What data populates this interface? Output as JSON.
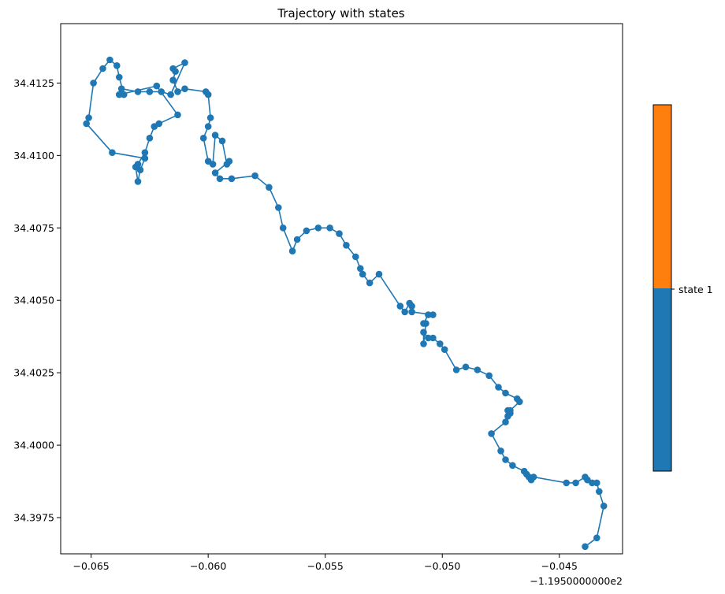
{
  "chart_data": {
    "type": "line",
    "title": "Trajectory with states",
    "xlabel": "",
    "ylabel": "",
    "x_offset_label": "−1.1950000000e2",
    "xlim": [
      -0.0663,
      -0.0423
    ],
    "ylim": [
      34.39625,
      34.41455
    ],
    "xticks": [
      -0.065,
      -0.06,
      -0.055,
      -0.05,
      -0.045
    ],
    "xtick_labels": [
      "−0.065",
      "−0.060",
      "−0.055",
      "−0.050",
      "−0.045"
    ],
    "yticks": [
      34.3975,
      34.4,
      34.4025,
      34.405,
      34.4075,
      34.41,
      34.4125
    ],
    "ytick_labels": [
      "34.3975",
      "34.4000",
      "34.4025",
      "34.4050",
      "34.4075",
      "34.4100",
      "34.4125"
    ],
    "marker": "circle",
    "line_color": "#1f77b4",
    "grid": false,
    "series": [
      {
        "x": [
          -0.0439,
          -0.0434,
          -0.0431,
          -0.0433,
          -0.0434,
          -0.0436,
          -0.0438,
          -0.0439,
          -0.0443,
          -0.0447,
          -0.0461,
          -0.0462,
          -0.0463,
          -0.0464,
          -0.0465,
          -0.047,
          -0.0473,
          -0.0475,
          -0.0479,
          -0.0473,
          -0.0472,
          -0.0471,
          -0.0472,
          -0.0471,
          -0.0467,
          -0.0468,
          -0.0473,
          -0.0476,
          -0.048,
          -0.0485,
          -0.049,
          -0.0494,
          -0.0499,
          -0.0501,
          -0.0504,
          -0.0506,
          -0.0508,
          -0.0508,
          -0.0507,
          -0.0508,
          -0.0506,
          -0.0504,
          -0.0513,
          -0.0513,
          -0.0514,
          -0.0516,
          -0.0518,
          -0.0527,
          -0.0531,
          -0.0534,
          -0.0535,
          -0.0537,
          -0.0541,
          -0.0544,
          -0.0548,
          -0.0553,
          -0.0558,
          -0.0562,
          -0.0564,
          -0.0568,
          -0.057,
          -0.0574,
          -0.058,
          -0.059,
          -0.0595,
          -0.0597,
          -0.0591,
          -0.0592,
          -0.0594,
          -0.0597,
          -0.0598,
          -0.06,
          -0.0602,
          -0.06,
          -0.0599,
          -0.06,
          -0.0601,
          -0.061,
          -0.0613,
          -0.0615,
          -0.0614,
          -0.0615,
          -0.061,
          -0.0616,
          -0.062,
          -0.0625,
          -0.063,
          -0.0637,
          -0.0636,
          -0.0638,
          -0.0639,
          -0.0642,
          -0.0645,
          -0.0649,
          -0.0651,
          -0.0652,
          -0.0641,
          -0.0627,
          -0.0629,
          -0.063,
          -0.0631,
          -0.063,
          -0.0627,
          -0.0625,
          -0.0623,
          -0.0621,
          -0.0613,
          -0.0622,
          -0.0638
        ],
        "y": [
          34.3965,
          34.3968,
          34.3979,
          34.3984,
          34.3987,
          34.3987,
          34.3988,
          34.3989,
          34.3987,
          34.3987,
          34.3989,
          34.3988,
          34.3989,
          34.399,
          34.3991,
          34.3993,
          34.3995,
          34.3998,
          34.4004,
          34.4008,
          34.401,
          34.4011,
          34.4012,
          34.4012,
          34.4015,
          34.4016,
          34.4018,
          34.402,
          34.4024,
          34.4026,
          34.4027,
          34.4026,
          34.4033,
          34.4035,
          34.4037,
          34.4037,
          34.4039,
          34.4035,
          34.4042,
          34.4042,
          34.4045,
          34.4045,
          34.4046,
          34.4048,
          34.4049,
          34.4046,
          34.4048,
          34.4059,
          34.4056,
          34.4059,
          34.4061,
          34.4065,
          34.4069,
          34.4073,
          34.4075,
          34.4075,
          34.4074,
          34.4071,
          34.4067,
          34.4075,
          34.4082,
          34.4089,
          34.4093,
          34.4092,
          34.4092,
          34.4094,
          34.4098,
          34.4097,
          34.4105,
          34.4107,
          34.4097,
          34.4098,
          34.4106,
          34.411,
          34.4113,
          34.4121,
          34.4122,
          34.4123,
          34.4122,
          34.4126,
          34.4129,
          34.413,
          34.4132,
          34.4121,
          34.4122,
          34.4122,
          34.4122,
          34.4123,
          34.4121,
          34.4127,
          34.4131,
          34.4133,
          34.413,
          34.4125,
          34.4113,
          34.4111,
          34.4101,
          34.4099,
          34.4095,
          34.4091,
          34.4096,
          34.4097,
          34.4101,
          34.4106,
          34.411,
          34.4111,
          34.4114,
          34.4124,
          34.4121
        ]
      }
    ],
    "colorbar": {
      "colors": [
        "#ff7f0e",
        "#1f77b4"
      ],
      "tick_label": "state 1"
    }
  }
}
